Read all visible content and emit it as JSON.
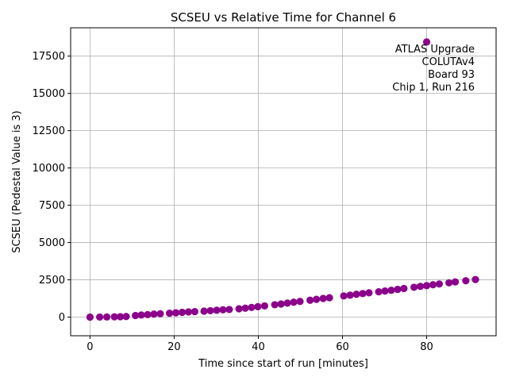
{
  "chart_data": {
    "type": "scatter",
    "title": "SCSEU vs Relative Time for Channel 6",
    "xlabel": "Time since start of run [minutes]",
    "ylabel": "SCSEU (Pedestal Value is 3)",
    "xlim": [
      -4.6,
      96.5
    ],
    "ylim": [
      -1250,
      19400
    ],
    "xticks": [
      0,
      20,
      40,
      60,
      80
    ],
    "yticks": [
      0,
      2500,
      5000,
      7500,
      10000,
      12500,
      15000,
      17500
    ],
    "ytick_labels": [
      "0",
      "2500",
      "5000",
      "7500",
      "10000",
      "12500",
      "15000",
      "17500"
    ],
    "grid": true,
    "marker_color": "#8b008b",
    "annotation": [
      "ATLAS Upgrade",
      "COLUTAv4",
      "Board 93",
      "Chip 1, Run 216"
    ],
    "annotation_position": "top-right",
    "series": [
      {
        "x": [
          0.0,
          2.3,
          4.0,
          5.8,
          7.2,
          8.6,
          10.8,
          12.2,
          13.7,
          15.2,
          16.7,
          18.9,
          20.4,
          21.9,
          23.4,
          24.9,
          27.1,
          28.6,
          30.1,
          31.6,
          33.1,
          35.4,
          36.9,
          38.4,
          39.9,
          41.5,
          43.9,
          45.4,
          46.9,
          48.4,
          49.9,
          52.3,
          53.8,
          55.4,
          56.9,
          60.3,
          61.8,
          63.3,
          64.8,
          66.3,
          68.6,
          70.1,
          71.6,
          73.1,
          74.6,
          77.0,
          78.5,
          80.0,
          81.5,
          83.0,
          85.3,
          86.8,
          89.3,
          91.6,
          80.0
        ],
        "y": [
          0,
          5,
          10,
          20,
          30,
          40,
          110,
          140,
          170,
          200,
          230,
          260,
          290,
          320,
          350,
          370,
          400,
          430,
          460,
          490,
          510,
          560,
          600,
          650,
          700,
          750,
          830,
          880,
          940,
          1000,
          1050,
          1130,
          1190,
          1250,
          1300,
          1420,
          1470,
          1530,
          1580,
          1630,
          1700,
          1750,
          1800,
          1860,
          1920,
          2000,
          2060,
          2110,
          2170,
          2220,
          2300,
          2360,
          2440,
          2520,
          18450
        ]
      }
    ]
  }
}
